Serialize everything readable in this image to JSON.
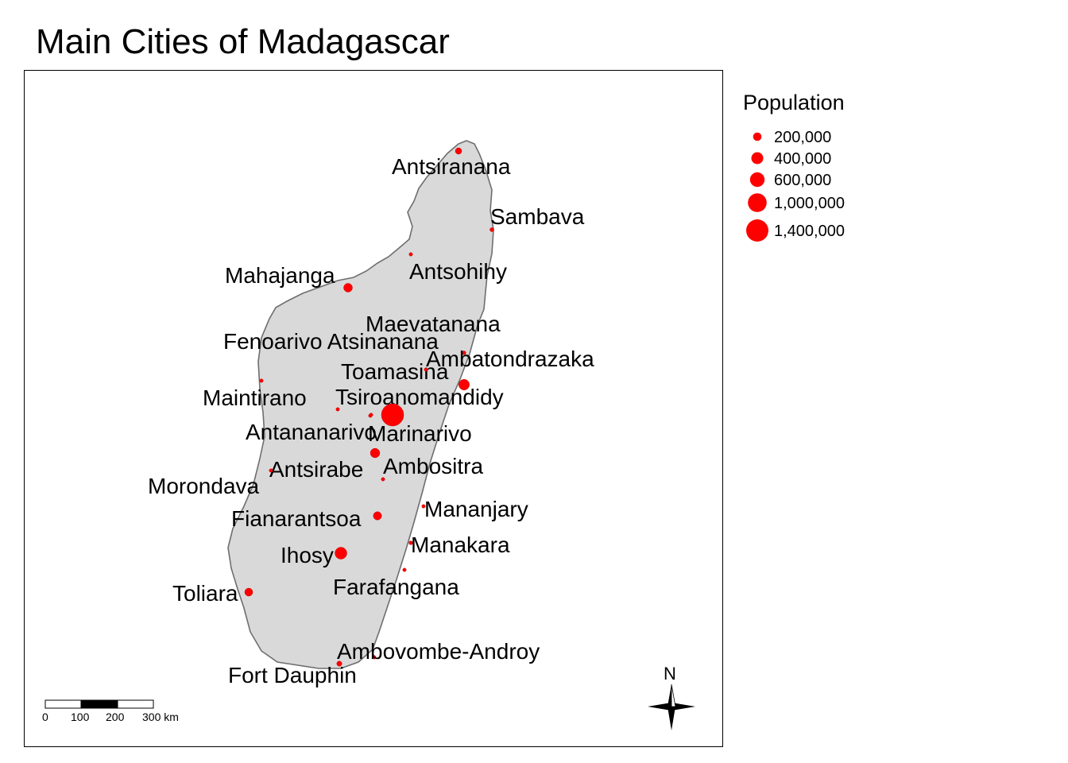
{
  "map": {
    "title": "Main Cities of Madagascar",
    "legend": {
      "title": "Population",
      "entries": [
        {
          "label": "200,000",
          "value": 200000
        },
        {
          "label": "400,000",
          "value": 400000
        },
        {
          "label": "600,000",
          "value": 600000
        },
        {
          "label": "1,000,000",
          "value": 1000000
        },
        {
          "label": "1,400,000",
          "value": 1400000
        }
      ]
    },
    "scale_bar": {
      "ticks": [
        "0",
        "100",
        "200",
        "300 km"
      ]
    },
    "north_arrow": {
      "label": "N"
    },
    "colors": {
      "point": "#ff0000",
      "land": "#d9d9d9",
      "coast": "#6e6e6e"
    },
    "cities": [
      {
        "name": "Antsiranana",
        "population": 115000
      },
      {
        "name": "Sambava",
        "population": 43000
      },
      {
        "name": "Antsohihy",
        "population": 25000
      },
      {
        "name": "Mahajanga",
        "population": 220000
      },
      {
        "name": "Maevatanana",
        "population": 20000
      },
      {
        "name": "Fenoarivo Atsinanana",
        "population": 30000
      },
      {
        "name": "Ambatondrazaka",
        "population": 40000
      },
      {
        "name": "Toamasina",
        "population": 325000
      },
      {
        "name": "Maintirano",
        "population": 20000
      },
      {
        "name": "Tsiroanomandidy",
        "population": 25000
      },
      {
        "name": "Antananarivo",
        "population": 1400000
      },
      {
        "name": "Marinarivo",
        "population": 15000
      },
      {
        "name": "Antsirabe",
        "population": 250000
      },
      {
        "name": "Ambositra",
        "population": 30000
      },
      {
        "name": "Morondava",
        "population": 36000
      },
      {
        "name": "Mananjary",
        "population": 25000
      },
      {
        "name": "Fianarantsoa",
        "population": 190000
      },
      {
        "name": "Manakara",
        "population": 40000
      },
      {
        "name": "Ihosy",
        "population": 400000
      },
      {
        "name": "Farafangana",
        "population": 25000
      },
      {
        "name": "Toliara",
        "population": 180000
      },
      {
        "name": "Ambovombe-Androy",
        "population": 25000
      },
      {
        "name": "Fort Dauphin",
        "population": 75000
      }
    ]
  }
}
